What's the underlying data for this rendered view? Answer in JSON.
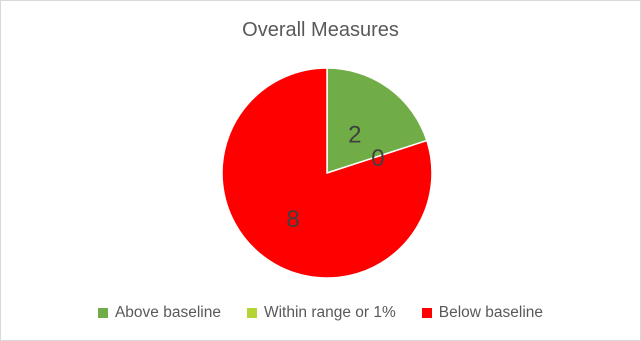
{
  "chart_data": {
    "type": "pie",
    "title": "Overall Measures",
    "categories": [
      "Above baseline",
      "Within range or 1%",
      "Below baseline"
    ],
    "values": [
      2,
      0,
      8
    ],
    "data_labels": [
      "2",
      "0",
      "8"
    ],
    "colors": [
      "#70ad47",
      "#b4d335",
      "#ff0000"
    ],
    "legend_placement": "bottom",
    "start_angle_deg": 0,
    "direction": "clockwise"
  }
}
